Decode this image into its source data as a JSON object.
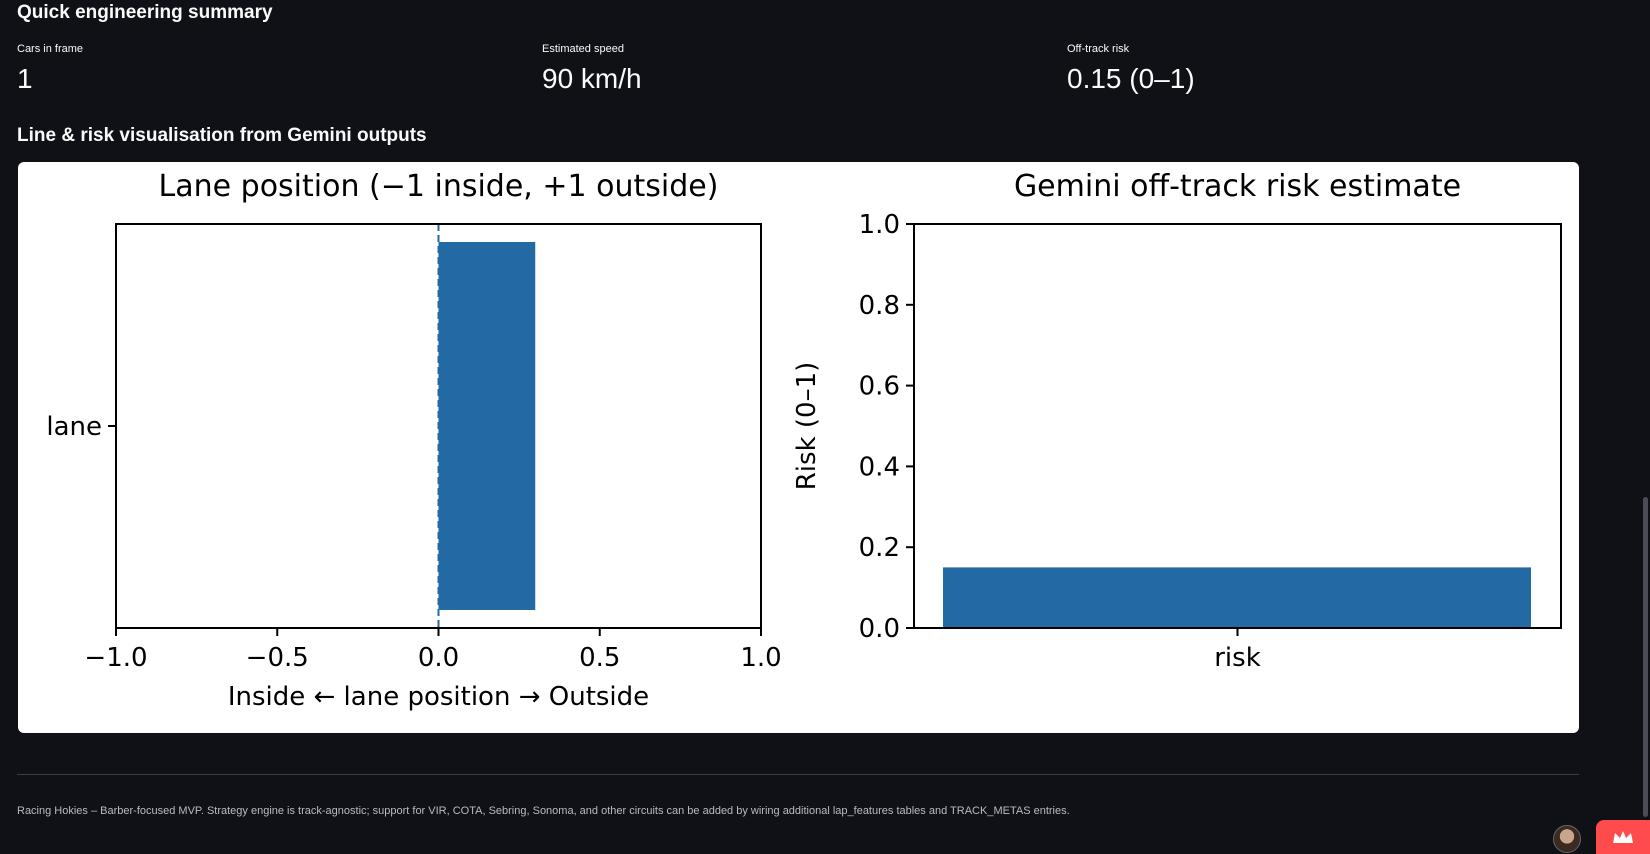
{
  "summary": {
    "title": "Quick engineering summary",
    "metrics": [
      {
        "label": "Cars in frame",
        "value": "1"
      },
      {
        "label": "Estimated speed",
        "value": "90 km/h"
      },
      {
        "label": "Off-track risk",
        "value": "0.15 (0–1)"
      }
    ]
  },
  "visualisation": {
    "title": "Line & risk visualisation from Gemini outputs"
  },
  "footer": {
    "text": "Racing Hokies – Barber-focused MVP. Strategy engine is track-agnostic; support for VIR, COTA, Sebring, Sonoma, and other circuits can be added by wiring additional lap_features tables and TRACK_METAS entries."
  },
  "colors": {
    "bar": "#2369a4",
    "background": "#0f1116",
    "badge": "#ff4b4b"
  },
  "icons": {
    "avatar": "user-avatar",
    "badge": "crown-icon"
  },
  "chart_data": [
    {
      "type": "bar",
      "orientation": "horizontal",
      "title": "Lane position (−1 inside, +1 outside)",
      "xlabel": "Inside  ←  lane position  →  Outside",
      "ylabel": "",
      "categories": [
        "lane"
      ],
      "values": [
        0.3
      ],
      "xlim": [
        -1.0,
        1.0
      ],
      "xticks": [
        -1.0,
        -0.5,
        0.0,
        0.5,
        1.0
      ],
      "xtick_labels": [
        "−1.0",
        "−0.5",
        "0.0",
        "0.5",
        "1.0"
      ],
      "reference_line": {
        "x": 0.0,
        "style": "dashed"
      },
      "grid": false
    },
    {
      "type": "bar",
      "title": "Gemini off-track risk estimate",
      "xlabel": "",
      "ylabel": "Risk (0–1)",
      "categories": [
        "risk"
      ],
      "values": [
        0.15
      ],
      "ylim": [
        0.0,
        1.0
      ],
      "yticks": [
        0.0,
        0.2,
        0.4,
        0.6,
        0.8,
        1.0
      ],
      "ytick_labels": [
        "0.0",
        "0.2",
        "0.4",
        "0.6",
        "0.8",
        "1.0"
      ],
      "grid": false
    }
  ]
}
